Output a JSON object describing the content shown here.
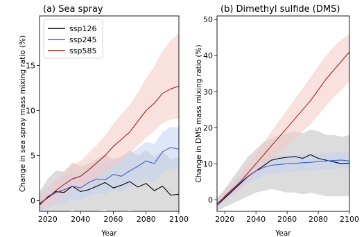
{
  "chart_data": [
    {
      "type": "line",
      "title": "(a) Sea spray",
      "xlabel": "Year",
      "ylabel": "Change in sea spray mass mixing ratio (%)",
      "xlim": [
        2015,
        2100
      ],
      "ylim": [
        -1.2,
        20.5
      ],
      "xticks": [
        2020,
        2040,
        2060,
        2080,
        2100
      ],
      "yticks": [
        0,
        5,
        10,
        15
      ],
      "grid": false,
      "legend": "top-left",
      "series": [
        {
          "name": "ssp126",
          "color": "#000000",
          "band_color": "#bfbfbf",
          "x": [
            2015,
            2020,
            2025,
            2030,
            2035,
            2040,
            2045,
            2050,
            2055,
            2060,
            2065,
            2070,
            2075,
            2080,
            2085,
            2090,
            2095,
            2100
          ],
          "y": [
            -0.5,
            0.4,
            1.0,
            0.9,
            1.6,
            1.0,
            1.2,
            1.6,
            2.0,
            1.4,
            1.7,
            2.1,
            1.5,
            1.9,
            1.1,
            1.6,
            0.6,
            0.7
          ],
          "lo": [
            -1.8,
            -1.5,
            -1.2,
            -1.4,
            -1.0,
            -1.6,
            -1.5,
            -1.2,
            -1.0,
            -1.6,
            -1.4,
            -1.0,
            -1.6,
            -1.2,
            -1.9,
            -1.5,
            -2.4,
            -2.3
          ],
          "hi": [
            1.0,
            2.4,
            3.3,
            3.2,
            4.2,
            3.8,
            4.1,
            4.6,
            5.2,
            4.5,
            4.9,
            5.6,
            5.0,
            5.6,
            4.9,
            5.5,
            4.6,
            4.8
          ]
        },
        {
          "name": "ssp245",
          "color": "#3b62c8",
          "band_color": "#c5d2f1",
          "x": [
            2015,
            2020,
            2025,
            2030,
            2035,
            2040,
            2045,
            2050,
            2055,
            2060,
            2065,
            2070,
            2075,
            2080,
            2085,
            2090,
            2095,
            2100
          ],
          "y": [
            -0.3,
            0.3,
            0.9,
            1.2,
            1.6,
            1.4,
            2.0,
            2.4,
            2.3,
            2.9,
            2.7,
            3.3,
            3.8,
            4.4,
            4.1,
            5.4,
            5.9,
            5.7
          ],
          "lo": [
            -1.2,
            -0.9,
            -0.4,
            -0.2,
            0.2,
            0.0,
            0.5,
            0.8,
            0.7,
            1.2,
            1.0,
            1.5,
            1.9,
            2.4,
            2.0,
            3.2,
            3.6,
            3.4
          ],
          "hi": [
            0.7,
            1.5,
            2.2,
            2.7,
            3.2,
            3.0,
            3.6,
            4.2,
            4.1,
            4.7,
            4.6,
            5.2,
            5.8,
            6.5,
            6.3,
            7.6,
            8.2,
            8.1
          ]
        },
        {
          "name": "ssp585",
          "color": "#a02323",
          "band_color": "#f3c9c5",
          "x": [
            2015,
            2020,
            2025,
            2030,
            2035,
            2040,
            2045,
            2050,
            2055,
            2060,
            2065,
            2070,
            2075,
            2080,
            2085,
            2090,
            2095,
            2100
          ],
          "y": [
            -0.4,
            0.3,
            1.1,
            1.8,
            2.4,
            2.7,
            3.4,
            4.2,
            5.0,
            6.0,
            6.8,
            7.6,
            8.8,
            10.0,
            10.8,
            11.9,
            12.4,
            12.7
          ],
          "lo": [
            -1.1,
            -0.7,
            0.0,
            0.5,
            1.1,
            1.3,
            1.8,
            2.5,
            3.1,
            3.8,
            4.5,
            5.2,
            6.1,
            7.0,
            7.7,
            8.6,
            9.0,
            9.1
          ],
          "hi": [
            0.6,
            1.4,
            2.4,
            3.2,
            4.0,
            4.4,
            5.3,
            6.2,
            7.2,
            8.5,
            9.6,
            10.6,
            12.0,
            13.6,
            14.9,
            16.6,
            17.8,
            18.6
          ]
        }
      ]
    },
    {
      "type": "line",
      "title": "(b) Dimethyl sulfide (DMS)",
      "xlabel": "Year",
      "ylabel": "Change in DMS mass mixing ratio (%)",
      "xlim": [
        2015,
        2100
      ],
      "ylim": [
        -3.2,
        51
      ],
      "xticks": [
        2020,
        2040,
        2060,
        2080,
        2100
      ],
      "yticks": [
        0,
        10,
        20,
        30,
        40,
        50
      ],
      "grid": false,
      "series": [
        {
          "name": "ssp126",
          "color": "#000000",
          "band_color": "#bfbfbf",
          "x": [
            2015,
            2020,
            2025,
            2030,
            2035,
            2040,
            2045,
            2050,
            2055,
            2060,
            2065,
            2070,
            2075,
            2080,
            2085,
            2090,
            2095,
            2100
          ],
          "y": [
            -1.5,
            0.5,
            2.5,
            4.5,
            6.5,
            8.0,
            9.5,
            11.0,
            11.5,
            11.8,
            12.0,
            11.5,
            12.5,
            11.5,
            11.0,
            10.5,
            10.0,
            10.2
          ],
          "lo": [
            -3.0,
            -2.0,
            -1.0,
            0.0,
            1.0,
            2.0,
            2.5,
            3.0,
            2.5,
            2.0,
            2.0,
            1.5,
            2.0,
            1.5,
            1.0,
            1.0,
            1.0,
            1.0
          ],
          "hi": [
            0.5,
            3.0,
            6.0,
            9.0,
            12.0,
            14.0,
            16.0,
            17.0,
            18.0,
            18.5,
            19.0,
            18.5,
            19.5,
            19.0,
            18.0,
            18.0,
            17.5,
            18.0
          ]
        },
        {
          "name": "ssp245",
          "color": "#3b62c8",
          "band_color": "#c5d2f1",
          "x": [
            2015,
            2020,
            2025,
            2030,
            2035,
            2040,
            2045,
            2050,
            2055,
            2060,
            2065,
            2070,
            2075,
            2080,
            2085,
            2090,
            2095,
            2100
          ],
          "y": [
            -1.0,
            0.8,
            2.8,
            4.8,
            6.6,
            8.0,
            9.0,
            9.6,
            9.8,
            10.0,
            10.1,
            10.3,
            10.4,
            10.6,
            10.8,
            10.9,
            11.0,
            10.8
          ],
          "lo": [
            -2.0,
            -0.5,
            1.2,
            2.9,
            4.5,
            5.8,
            6.7,
            7.3,
            7.5,
            7.7,
            7.8,
            8.0,
            8.1,
            8.3,
            8.5,
            8.6,
            8.7,
            8.5
          ],
          "hi": [
            0.5,
            2.3,
            4.5,
            6.7,
            8.7,
            10.2,
            11.3,
            11.9,
            12.1,
            12.3,
            12.4,
            12.6,
            12.7,
            12.9,
            13.1,
            13.2,
            13.3,
            13.1
          ]
        },
        {
          "name": "ssp585",
          "color": "#a02323",
          "band_color": "#f3c9c5",
          "x": [
            2015,
            2020,
            2025,
            2030,
            2035,
            2040,
            2045,
            2050,
            2055,
            2060,
            2065,
            2070,
            2075,
            2080,
            2085,
            2090,
            2095,
            2100
          ],
          "y": [
            -1.5,
            1.0,
            3.0,
            5.0,
            7.5,
            10.0,
            12.5,
            15.0,
            17.5,
            20.0,
            22.5,
            25.0,
            27.5,
            30.5,
            33.5,
            36.0,
            38.5,
            41.0
          ],
          "lo": [
            -2.0,
            0.0,
            1.5,
            3.0,
            5.0,
            7.0,
            9.0,
            11.0,
            13.0,
            15.0,
            17.0,
            19.0,
            21.0,
            23.5,
            26.0,
            28.5,
            30.5,
            33.0
          ],
          "hi": [
            0.0,
            2.5,
            4.5,
            7.0,
            10.0,
            13.0,
            16.0,
            19.0,
            22.0,
            25.0,
            28.0,
            31.0,
            34.0,
            37.0,
            40.0,
            42.5,
            44.5,
            46.0
          ]
        }
      ]
    }
  ]
}
